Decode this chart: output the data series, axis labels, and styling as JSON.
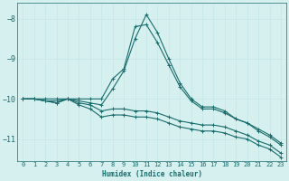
{
  "xlabel": "Humidex (Indice chaleur)",
  "bg_color": "#d6f0f0",
  "grid_color_major": "#c8e8e8",
  "grid_color_minor": "#e0f4f4",
  "line_color": "#1a6b6b",
  "xlim": [
    -0.5,
    23.5
  ],
  "ylim": [
    -11.55,
    -7.6
  ],
  "yticks": [
    -11,
    -10,
    -9,
    -8
  ],
  "xticks": [
    0,
    1,
    2,
    3,
    4,
    5,
    6,
    7,
    8,
    9,
    10,
    11,
    12,
    13,
    14,
    15,
    16,
    17,
    18,
    19,
    20,
    21,
    22,
    23
  ],
  "lines": [
    {
      "x": [
        0,
        1,
        2,
        3,
        4,
        5,
        6,
        7,
        8,
        9,
        10,
        11,
        12,
        13,
        14,
        15,
        16,
        17,
        18,
        19,
        20,
        21,
        22,
        23
      ],
      "y": [
        -10.0,
        -10.0,
        -10.05,
        -10.1,
        -10.0,
        -10.15,
        -10.25,
        -10.45,
        -10.4,
        -10.4,
        -10.45,
        -10.45,
        -10.5,
        -10.6,
        -10.7,
        -10.75,
        -10.8,
        -10.8,
        -10.85,
        -10.95,
        -11.0,
        -11.15,
        -11.25,
        -11.45
      ]
    },
    {
      "x": [
        0,
        1,
        2,
        3,
        4,
        5,
        6,
        7,
        8,
        9,
        10,
        11,
        12,
        13,
        14,
        15,
        16,
        17,
        18,
        19,
        20,
        21,
        22,
        23
      ],
      "y": [
        -10.0,
        -10.0,
        -10.05,
        -10.1,
        -10.0,
        -10.1,
        -10.15,
        -10.3,
        -10.25,
        -10.25,
        -10.3,
        -10.3,
        -10.35,
        -10.45,
        -10.55,
        -10.6,
        -10.65,
        -10.65,
        -10.7,
        -10.8,
        -10.9,
        -11.05,
        -11.15,
        -11.35
      ]
    },
    {
      "x": [
        0,
        1,
        2,
        3,
        4,
        5,
        6,
        7,
        8,
        9,
        10,
        11,
        12,
        13,
        14,
        15,
        16,
        17,
        18,
        19,
        20,
        21,
        22,
        23
      ],
      "y": [
        -10.0,
        -10.0,
        -10.05,
        -10.05,
        -10.0,
        -10.05,
        -10.1,
        -10.15,
        -9.75,
        -9.3,
        -8.5,
        -7.9,
        -8.35,
        -9.0,
        -9.6,
        -10.0,
        -10.2,
        -10.2,
        -10.3,
        -10.5,
        -10.6,
        -10.75,
        -10.9,
        -11.1
      ]
    },
    {
      "x": [
        0,
        1,
        2,
        3,
        4,
        5,
        6,
        7,
        8,
        9,
        10,
        11,
        12,
        13,
        14,
        15,
        16,
        17,
        18,
        19,
        20,
        21,
        22,
        23
      ],
      "y": [
        -10.0,
        -10.0,
        -10.0,
        -10.0,
        -10.0,
        -10.0,
        -10.0,
        -10.0,
        -9.5,
        -9.25,
        -8.2,
        -8.15,
        -8.6,
        -9.15,
        -9.7,
        -10.05,
        -10.25,
        -10.25,
        -10.35,
        -10.5,
        -10.6,
        -10.8,
        -10.95,
        -11.15
      ]
    }
  ]
}
